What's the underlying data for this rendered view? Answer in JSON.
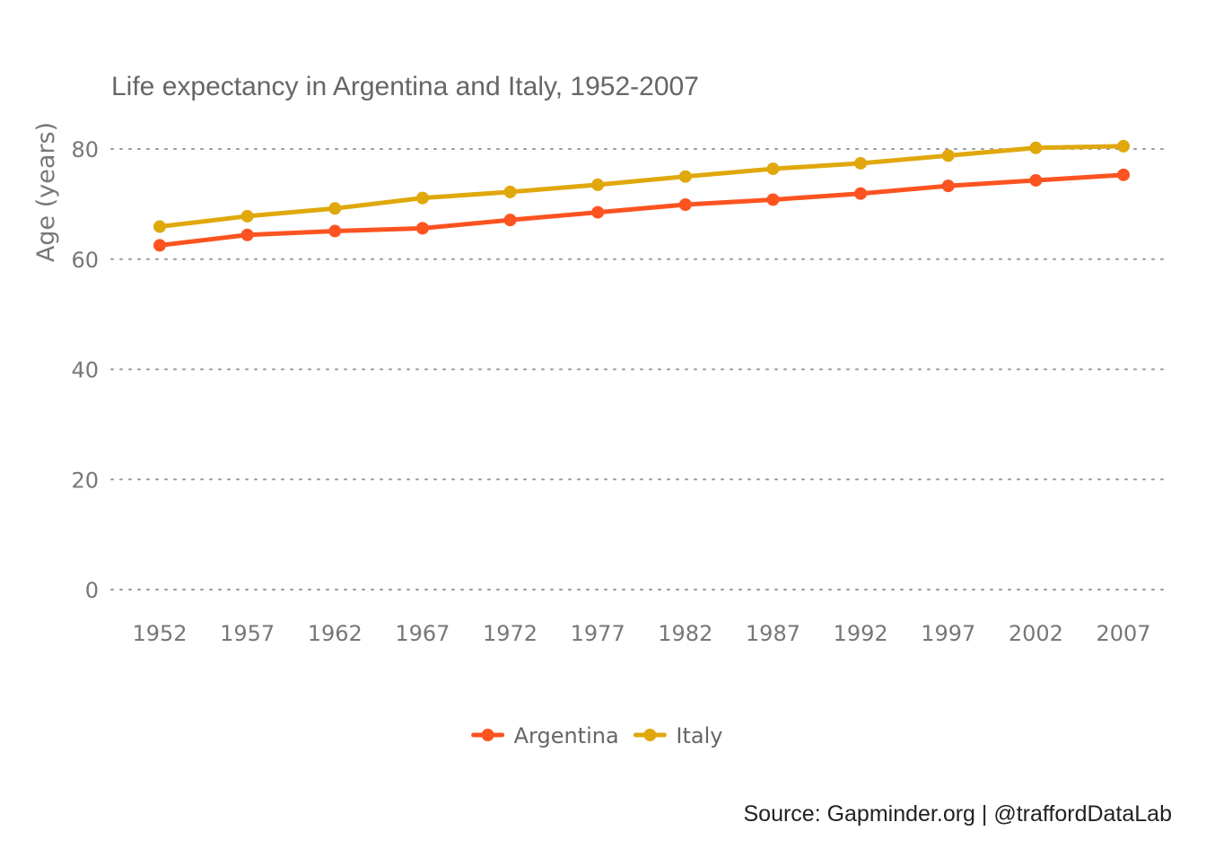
{
  "source_caption": "Source: Gapminder.org  |  @traffordDataLab",
  "chart_data": {
    "type": "line",
    "title": "Life expectancy in Argentina and Italy, 1952-2007",
    "xlabel": "",
    "ylabel": "Age (years)",
    "x": [
      1952,
      1957,
      1962,
      1967,
      1972,
      1977,
      1982,
      1987,
      1992,
      1997,
      2002,
      2007
    ],
    "x_tick_labels": [
      "1952",
      "1957",
      "1962",
      "1967",
      "1972",
      "1977",
      "1982",
      "1987",
      "1992",
      "1997",
      "2002",
      "2007"
    ],
    "y_ticks": [
      0,
      20,
      40,
      60,
      80
    ],
    "y_tick_labels": [
      "0",
      "20",
      "40",
      "60",
      "80"
    ],
    "ylim": [
      0,
      84
    ],
    "grid": "horizontal-dotted",
    "legend_position": "bottom",
    "series": [
      {
        "name": "Argentina",
        "color": "#fc5320",
        "values": [
          62.5,
          64.4,
          65.1,
          65.6,
          67.1,
          68.5,
          69.9,
          70.8,
          71.9,
          73.3,
          74.3,
          75.3
        ]
      },
      {
        "name": "Italy",
        "color": "#e0a80c",
        "values": [
          65.9,
          67.8,
          69.2,
          71.1,
          72.2,
          73.5,
          75.0,
          76.4,
          77.4,
          78.8,
          80.2,
          80.5
        ]
      }
    ]
  }
}
